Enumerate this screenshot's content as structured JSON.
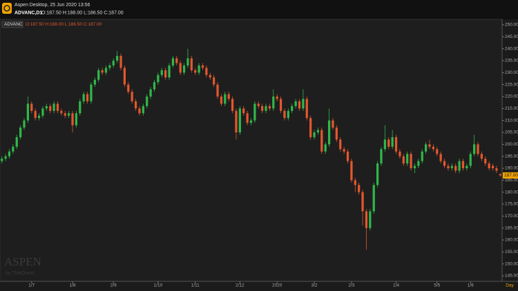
{
  "header": {
    "title": "Aspen Desktop, 25 Jun 2020 13:56",
    "symbol": "ADVANC,D1",
    "ohlc": "O:187.50 H:188.00 L:186.50 C:187.00"
  },
  "watermark": {
    "brand": "ASPEN",
    "by": "by ThaiQuest"
  },
  "chart_data": {
    "type": "candlestick",
    "symbol_label": "ADVANC",
    "ohlc_label": "O:187.50 H:188.00 L:186.50 C:187.00",
    "x_label": "Day",
    "up_color": "#2fb84a",
    "down_color": "#e4572e",
    "xlim": [
      -0.5,
      134.5
    ],
    "xticks": [
      {
        "value": 8,
        "label": "1/7"
      },
      {
        "value": 19,
        "label": "1/8"
      },
      {
        "value": 30,
        "label": "2/9"
      },
      {
        "value": 42,
        "label": "1/10"
      },
      {
        "value": 52,
        "label": "1/11"
      },
      {
        "value": 64,
        "label": "2/12"
      },
      {
        "value": 74,
        "label": "2020"
      },
      {
        "value": 84,
        "label": "3/2"
      },
      {
        "value": 94,
        "label": "2/3"
      },
      {
        "value": 106,
        "label": "1/4"
      },
      {
        "value": 117,
        "label": "5/5"
      },
      {
        "value": 126,
        "label": "1/6"
      }
    ],
    "ylim": [
      142.7,
      252.3
    ],
    "yticks": [
      {
        "value": 250,
        "label": "250.00"
      },
      {
        "value": 245,
        "label": "245.00"
      },
      {
        "value": 240,
        "label": "240.00"
      },
      {
        "value": 235,
        "label": "235.00"
      },
      {
        "value": 230,
        "label": "230.00"
      },
      {
        "value": 225,
        "label": "225.00"
      },
      {
        "value": 220,
        "label": "220.00"
      },
      {
        "value": 215,
        "label": "215.00"
      },
      {
        "value": 210,
        "label": "210.00"
      },
      {
        "value": 205,
        "label": "205.00"
      },
      {
        "value": 200,
        "label": "200.00"
      },
      {
        "value": 195,
        "label": "195.00"
      },
      {
        "value": 190,
        "label": "190.00"
      },
      {
        "value": 185,
        "label": "185.00"
      },
      {
        "value": 180,
        "label": "180.00"
      },
      {
        "value": 175,
        "label": "175.00"
      },
      {
        "value": 170,
        "label": "170.00"
      },
      {
        "value": 165,
        "label": "165.00"
      },
      {
        "value": 160,
        "label": "160.00"
      },
      {
        "value": 155,
        "label": "155.00"
      },
      {
        "value": 150,
        "label": "150.00"
      },
      {
        "value": 145,
        "label": "145.00"
      }
    ],
    "last_price": {
      "value": 187,
      "label": "187.00"
    },
    "open": [
      193,
      194,
      195,
      197,
      199,
      203,
      207,
      210,
      217,
      214,
      211,
      212,
      215,
      216,
      214,
      217,
      214,
      213,
      212,
      213,
      208,
      213,
      218,
      221,
      218,
      225,
      227,
      231,
      230,
      232,
      233,
      235,
      237,
      232,
      225,
      222,
      218,
      215,
      213,
      216,
      220,
      223,
      226,
      229,
      231,
      228,
      233,
      236,
      234,
      230,
      233,
      236,
      231,
      230,
      233,
      232,
      229,
      228,
      225,
      220,
      217,
      221,
      219,
      214,
      205,
      215,
      213,
      209,
      210,
      217,
      216,
      214,
      216,
      215,
      220,
      219,
      214,
      211,
      214,
      216,
      218,
      215,
      219,
      211,
      203,
      205,
      206,
      197,
      200,
      210,
      207,
      202,
      198,
      197,
      193,
      185,
      183,
      180,
      172,
      165,
      172,
      183,
      192,
      198,
      202,
      199,
      203,
      197,
      195,
      192,
      196,
      190,
      191,
      193,
      197,
      200,
      199,
      198,
      196,
      193,
      191,
      190,
      191,
      189,
      193,
      190,
      191,
      196,
      200,
      196,
      194,
      192,
      191,
      190,
      187.5
    ],
    "high": [
      195,
      196,
      198,
      200,
      204,
      208,
      211,
      220,
      218,
      215,
      213,
      216,
      217,
      217,
      218,
      218,
      215,
      214,
      214,
      214,
      214,
      219,
      222,
      222,
      226,
      228,
      232,
      232,
      233,
      234,
      236,
      239,
      238,
      233,
      226,
      223,
      219,
      216,
      217,
      221,
      224,
      227,
      230,
      232,
      232,
      234,
      237,
      237,
      235,
      234,
      240,
      237,
      232,
      234,
      234,
      233,
      230,
      229,
      226,
      221,
      222,
      222,
      220,
      215,
      216,
      216,
      214,
      211,
      218,
      218,
      217,
      217,
      217,
      223,
      221,
      220,
      215,
      215,
      217,
      219,
      219,
      223,
      220,
      212,
      206,
      207,
      207,
      201,
      215,
      211,
      208,
      203,
      199,
      198,
      194,
      186,
      184,
      181,
      173,
      173,
      184,
      193,
      199,
      208,
      203,
      206,
      204,
      198,
      196,
      197,
      197,
      192,
      194,
      198,
      201,
      202,
      200,
      199,
      197,
      194,
      192,
      192,
      192,
      194,
      194,
      192,
      197,
      204,
      201,
      197,
      195,
      193,
      192,
      191,
      188
    ],
    "low": [
      192,
      193,
      194,
      196,
      198,
      202,
      206,
      209,
      213,
      210,
      210,
      211,
      214,
      213,
      213,
      213,
      212,
      211,
      211,
      205,
      207,
      212,
      217,
      217,
      217,
      224,
      226,
      229,
      229,
      231,
      232,
      234,
      231,
      224,
      221,
      217,
      214,
      212,
      212,
      215,
      219,
      222,
      225,
      228,
      227,
      227,
      232,
      233,
      229,
      229,
      232,
      230,
      229,
      229,
      231,
      228,
      227,
      224,
      219,
      216,
      216,
      218,
      213,
      202,
      204,
      212,
      208,
      208,
      209,
      215,
      213,
      213,
      214,
      214,
      218,
      213,
      210,
      210,
      213,
      215,
      214,
      214,
      210,
      202,
      202,
      204,
      196,
      196,
      199,
      206,
      201,
      197,
      196,
      192,
      184,
      180,
      179,
      166,
      156,
      164,
      171,
      182,
      191,
      197,
      198,
      198,
      196,
      194,
      191,
      191,
      189,
      188,
      190,
      192,
      196,
      198,
      197,
      195,
      192,
      190,
      189,
      189,
      188,
      188,
      189,
      189,
      190,
      195,
      195,
      193,
      191,
      189,
      189,
      188,
      186.5
    ],
    "close": [
      194,
      195,
      197,
      199,
      203,
      207,
      210,
      217,
      214,
      211,
      212,
      215,
      216,
      214,
      217,
      214,
      213,
      212,
      213,
      208,
      213,
      218,
      221,
      218,
      225,
      227,
      231,
      230,
      232,
      233,
      235,
      237,
      232,
      225,
      222,
      218,
      215,
      213,
      216,
      220,
      223,
      226,
      229,
      231,
      228,
      233,
      236,
      234,
      230,
      233,
      236,
      231,
      230,
      233,
      232,
      229,
      228,
      225,
      220,
      217,
      221,
      219,
      214,
      205,
      215,
      213,
      209,
      210,
      217,
      216,
      214,
      216,
      215,
      220,
      219,
      214,
      211,
      214,
      216,
      218,
      215,
      219,
      211,
      203,
      205,
      206,
      197,
      200,
      210,
      207,
      202,
      198,
      197,
      193,
      185,
      183,
      180,
      172,
      165,
      172,
      183,
      192,
      198,
      202,
      199,
      203,
      197,
      195,
      192,
      196,
      190,
      191,
      193,
      197,
      200,
      199,
      198,
      196,
      193,
      191,
      190,
      191,
      189,
      193,
      190,
      191,
      196,
      200,
      196,
      194,
      192,
      190,
      190,
      189,
      187
    ]
  }
}
